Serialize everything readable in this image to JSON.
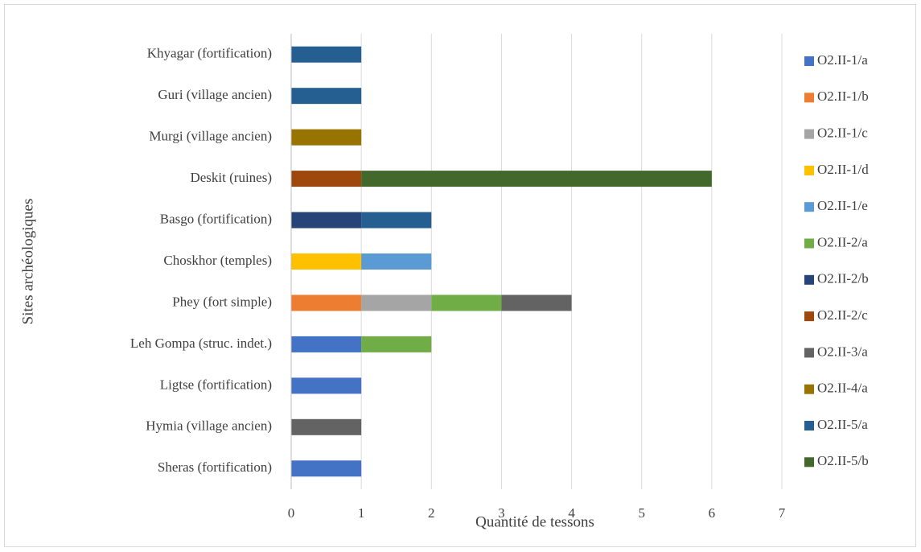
{
  "chart_data": {
    "type": "stacked_barh",
    "xlabel": "Quantité de tessons",
    "ylabel": "Sites archéologiques",
    "categories": [
      "Sheras (fortification)",
      "Hymia (village ancien)",
      "Ligtse (fortification)",
      "Leh Gompa (struc. indet.)",
      "Phey (fort simple)",
      "Choskhor (temples)",
      "Basgo (fortification)",
      "Deskit (ruines)",
      "Murgi (village ancien)",
      "Guri (village ancien)",
      "Khyagar (fortification)"
    ],
    "series": [
      {
        "name": "O2.II-1/a",
        "color": "#4472c4",
        "values": [
          1,
          null,
          1,
          1,
          null,
          null,
          null,
          null,
          null,
          null,
          null
        ]
      },
      {
        "name": "O2.II-1/b",
        "color": "#ed7d31",
        "values": [
          null,
          null,
          null,
          null,
          1,
          null,
          null,
          null,
          null,
          null,
          null
        ]
      },
      {
        "name": "O2.II-1/c",
        "color": "#a5a5a5",
        "values": [
          null,
          null,
          null,
          null,
          1,
          null,
          null,
          null,
          null,
          null,
          null
        ]
      },
      {
        "name": "O2.II-1/d",
        "color": "#ffc000",
        "values": [
          null,
          null,
          null,
          null,
          null,
          1,
          null,
          null,
          null,
          null,
          null
        ]
      },
      {
        "name": "O2.II-1/e",
        "color": "#5b9bd5",
        "values": [
          null,
          null,
          null,
          null,
          null,
          1,
          null,
          null,
          null,
          null,
          null
        ]
      },
      {
        "name": "O2.II-2/a",
        "color": "#70ad47",
        "values": [
          null,
          null,
          null,
          1,
          1,
          null,
          null,
          null,
          null,
          null,
          null
        ]
      },
      {
        "name": "O2.II-2/b",
        "color": "#264478",
        "values": [
          null,
          null,
          null,
          null,
          null,
          null,
          1,
          null,
          null,
          null,
          null
        ]
      },
      {
        "name": "O2.II-2/c",
        "color": "#9e480e",
        "values": [
          null,
          null,
          null,
          null,
          null,
          null,
          null,
          1,
          null,
          null,
          null
        ]
      },
      {
        "name": "O2.II-3/a",
        "color": "#636363",
        "values": [
          null,
          1,
          null,
          null,
          1,
          null,
          null,
          null,
          null,
          null,
          null
        ]
      },
      {
        "name": "O2.II-4/a",
        "color": "#997300",
        "values": [
          null,
          null,
          null,
          null,
          null,
          null,
          null,
          null,
          1,
          null,
          null
        ]
      },
      {
        "name": "O2.II-5/a",
        "color": "#255e91",
        "values": [
          null,
          null,
          null,
          null,
          null,
          null,
          1,
          null,
          null,
          1,
          1
        ]
      },
      {
        "name": "O2.II-5/b",
        "color": "#43682b",
        "values": [
          null,
          null,
          null,
          null,
          null,
          null,
          null,
          5,
          null,
          null,
          null
        ]
      }
    ],
    "xlim": [
      0,
      7
    ],
    "xticks": [
      0,
      1,
      2,
      3,
      4,
      5,
      6,
      7
    ],
    "grid": true,
    "legend": "right"
  }
}
